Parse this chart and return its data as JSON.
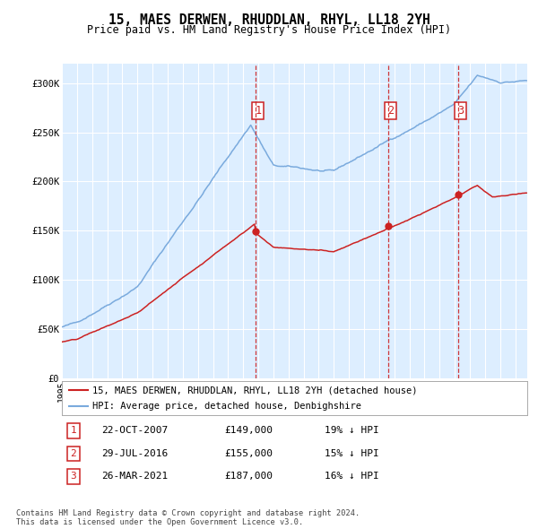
{
  "title": "15, MAES DERWEN, RHUDDLAN, RHYL, LL18 2YH",
  "subtitle": "Price paid vs. HM Land Registry's House Price Index (HPI)",
  "hpi_color": "#7aaadd",
  "price_color": "#cc2222",
  "plot_bg": "#ddeeff",
  "grid_color": "#ffffff",
  "ylim": [
    0,
    320000
  ],
  "yticks": [
    0,
    50000,
    100000,
    150000,
    200000,
    250000,
    300000
  ],
  "ylabel_strs": [
    "£0",
    "£50K",
    "£100K",
    "£150K",
    "£200K",
    "£250K",
    "£300K"
  ],
  "sale_prices": [
    149000,
    155000,
    187000
  ],
  "sale_labels": [
    "1",
    "2",
    "3"
  ],
  "sale_below_hpi": [
    "19%",
    "15%",
    "16%"
  ],
  "sale_date_strs": [
    "22-OCT-2007",
    "29-JUL-2016",
    "26-MAR-2021"
  ],
  "sale_price_strs": [
    "£149,000",
    "£155,000",
    "£187,000"
  ],
  "legend_label_price": "15, MAES DERWEN, RHUDDLAN, RHYL, LL18 2YH (detached house)",
  "legend_label_hpi": "HPI: Average price, detached house, Denbighshire",
  "footer": "Contains HM Land Registry data © Crown copyright and database right 2024.\nThis data is licensed under the Open Government Licence v3.0.",
  "xstart": 1995.0,
  "xend": 2025.8
}
